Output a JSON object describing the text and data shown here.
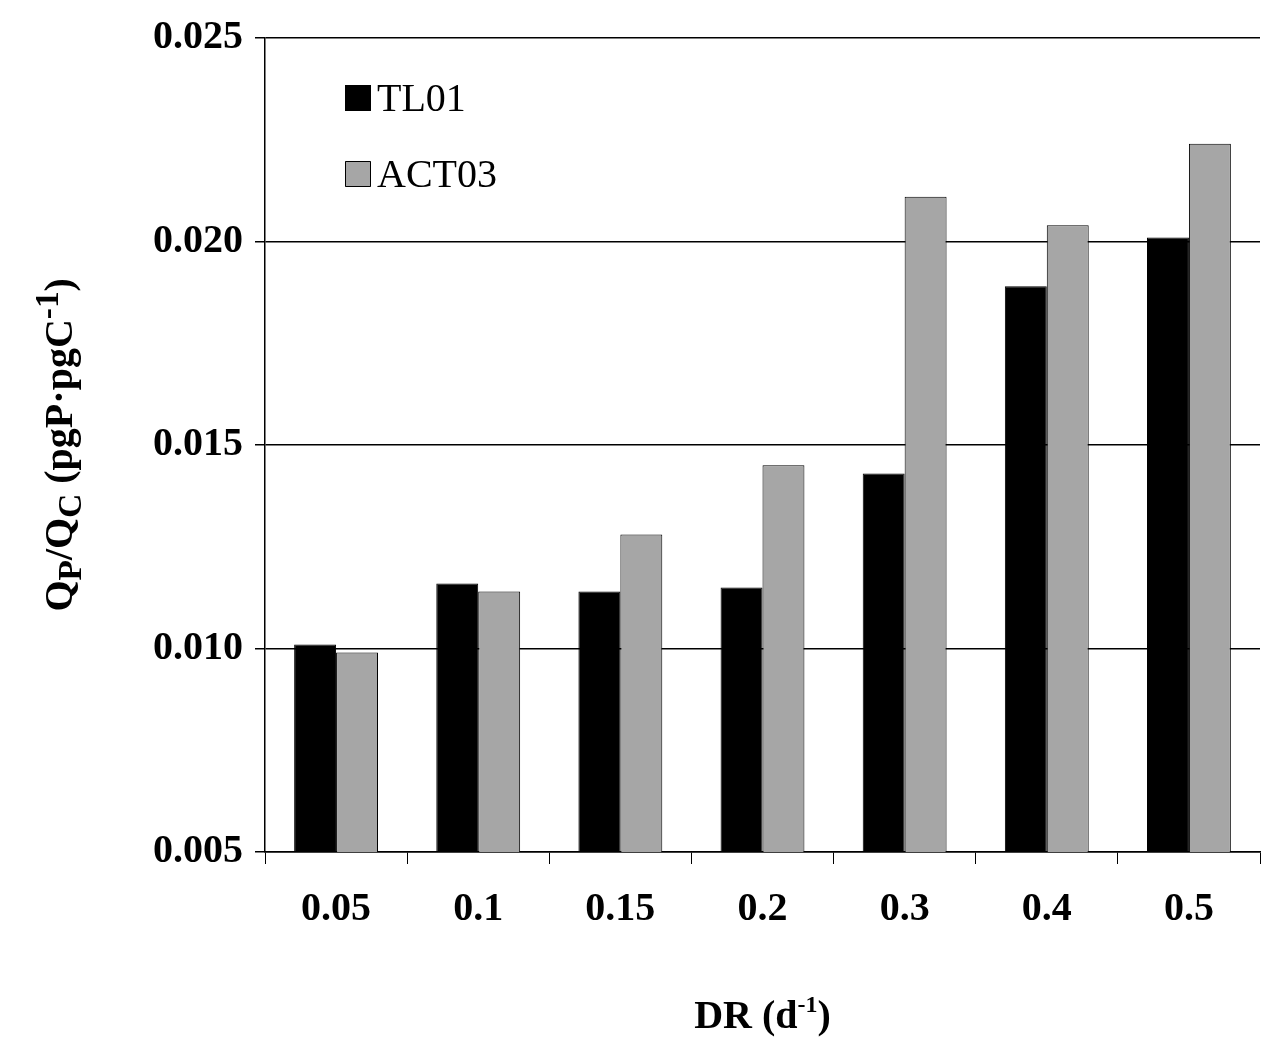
{
  "chart_data": {
    "type": "bar",
    "xlabel": "DR (d$^{-1}$)",
    "ylabel": "Q$_{P}$/Q$_{C}$  (pgP·pgC$^{-1}$)",
    "categories": [
      "0.05",
      "0.1",
      "0.15",
      "0.2",
      "0.3",
      "0.4",
      "0.5"
    ],
    "series": [
      {
        "name": "TL01",
        "color": "#000000",
        "values": [
          0.0101,
          0.0116,
          0.0114,
          0.0115,
          0.0143,
          0.0189,
          0.0201
        ]
      },
      {
        "name": "ACT03",
        "color": "#a6a6a6",
        "values": [
          0.0099,
          0.0114,
          0.0128,
          0.0145,
          0.0211,
          0.0204,
          0.0224
        ]
      }
    ],
    "ylim": [
      0.005,
      0.025
    ],
    "yticks": [
      {
        "value": 0.005,
        "label": "0.005"
      },
      {
        "value": 0.01,
        "label": "0.010"
      },
      {
        "value": 0.015,
        "label": "0.015"
      },
      {
        "value": 0.02,
        "label": "0.020"
      },
      {
        "value": 0.025,
        "label": "0.025"
      }
    ],
    "grid": "y",
    "legend": "top left"
  }
}
